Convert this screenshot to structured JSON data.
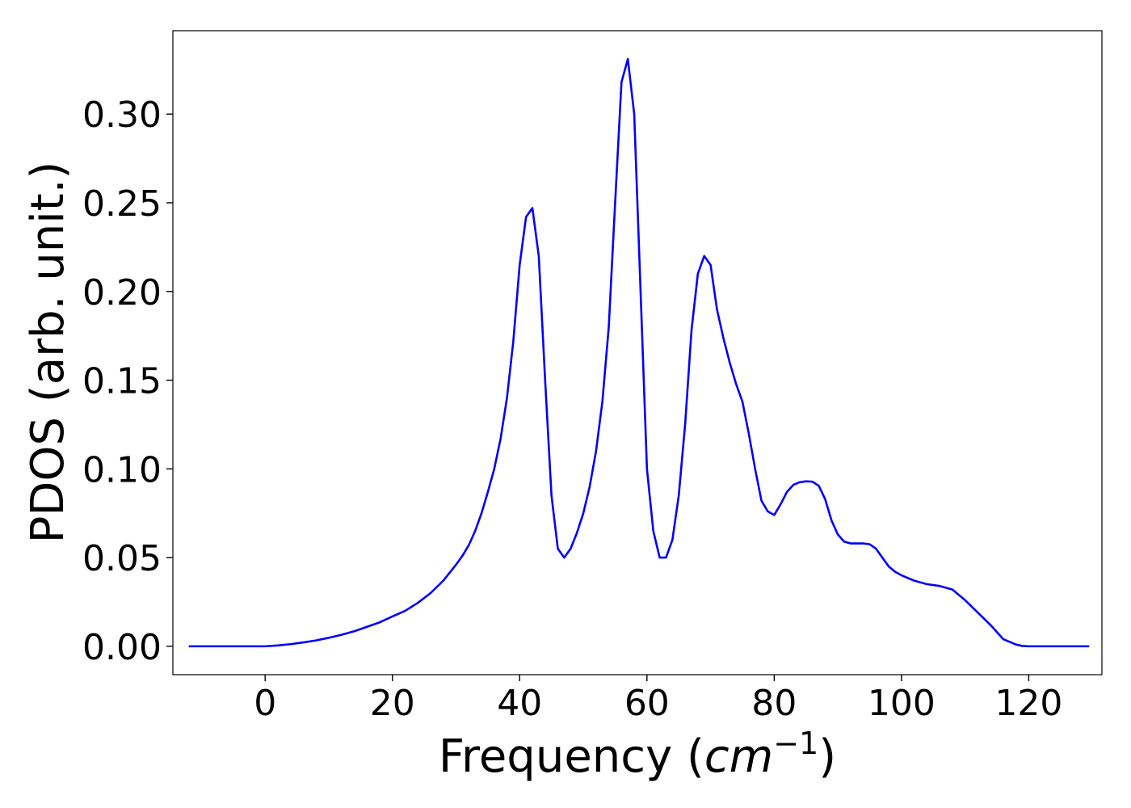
{
  "chart_data": {
    "type": "line",
    "title": "",
    "xlabel": {
      "prefix": "Frequency (",
      "var": "cm",
      "exponent": "−1",
      "suffix": ")"
    },
    "ylabel": "PDOS (arb. unit.)",
    "xlim": [
      -14.5,
      131.5
    ],
    "ylim": [
      -0.016,
      0.347
    ],
    "xticks": [
      0,
      20,
      40,
      60,
      80,
      100,
      120
    ],
    "yticks": [
      0.0,
      0.05,
      0.1,
      0.15,
      0.2,
      0.25,
      0.3
    ],
    "ytick_labels": [
      "0.00",
      "0.05",
      "0.10",
      "0.15",
      "0.20",
      "0.25",
      "0.30"
    ],
    "grid": false,
    "legend": "none",
    "series": [
      {
        "color": "#0000ff",
        "x": [
          -12,
          -8,
          -4,
          0,
          2,
          4,
          6,
          8,
          10,
          12,
          14,
          16,
          18,
          20,
          22,
          24,
          26,
          28,
          30,
          31,
          32,
          33,
          34,
          35,
          36,
          37,
          38,
          39,
          40,
          41,
          42,
          43,
          44,
          45,
          46,
          47,
          48,
          49,
          50,
          51,
          52,
          53,
          54,
          55,
          56,
          57,
          58,
          59,
          60,
          61,
          62,
          63,
          64,
          65,
          66,
          67,
          68,
          69,
          70,
          71,
          72,
          73,
          74,
          75,
          76,
          77,
          78,
          79,
          80,
          81,
          82,
          83,
          84,
          85,
          86,
          87,
          88,
          89,
          90,
          91,
          92,
          93,
          94,
          95,
          96,
          97,
          98,
          99,
          100,
          102,
          104,
          106,
          108,
          110,
          112,
          114,
          116,
          118,
          119,
          120,
          122,
          125,
          129.5
        ],
        "y": [
          0.0,
          0.0,
          0.0,
          0.0,
          0.0005,
          0.0012,
          0.0022,
          0.0033,
          0.0048,
          0.0065,
          0.0085,
          0.011,
          0.0135,
          0.0168,
          0.02,
          0.0245,
          0.03,
          0.037,
          0.046,
          0.051,
          0.057,
          0.065,
          0.075,
          0.087,
          0.1,
          0.117,
          0.14,
          0.172,
          0.215,
          0.242,
          0.247,
          0.22,
          0.15,
          0.085,
          0.055,
          0.05,
          0.055,
          0.064,
          0.075,
          0.09,
          0.11,
          0.138,
          0.18,
          0.25,
          0.318,
          0.331,
          0.3,
          0.2,
          0.1,
          0.065,
          0.05,
          0.05,
          0.06,
          0.085,
          0.125,
          0.178,
          0.21,
          0.22,
          0.215,
          0.19,
          0.174,
          0.16,
          0.148,
          0.138,
          0.12,
          0.1,
          0.082,
          0.076,
          0.074,
          0.08,
          0.087,
          0.091,
          0.0925,
          0.093,
          0.0928,
          0.0905,
          0.083,
          0.071,
          0.063,
          0.059,
          0.058,
          0.058,
          0.058,
          0.0575,
          0.055,
          0.05,
          0.045,
          0.042,
          0.04,
          0.037,
          0.035,
          0.034,
          0.032,
          0.026,
          0.019,
          0.012,
          0.004,
          0.001,
          0.0002,
          0.0,
          0.0,
          0.0,
          0.0
        ]
      }
    ]
  }
}
